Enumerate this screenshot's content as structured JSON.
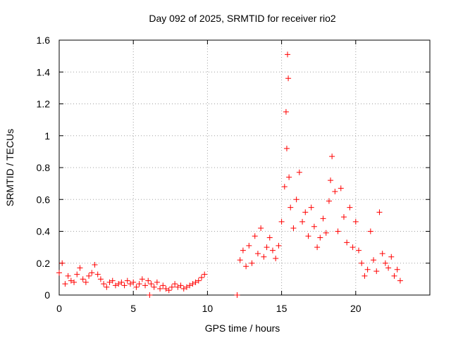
{
  "chart_data": {
    "type": "scatter",
    "title": "Day 092 of 2025, SRMTID for receiver rio2",
    "xlabel": "GPS time / hours",
    "ylabel": "SRMTID / TECUs",
    "xlim": [
      0,
      25
    ],
    "ylim": [
      0,
      1.6
    ],
    "xticks": [
      0,
      5,
      10,
      15,
      20
    ],
    "yticks": [
      0,
      0.2,
      0.4,
      0.6,
      0.8,
      1.0,
      1.2,
      1.4,
      1.6
    ],
    "ytick_labels": [
      "0",
      "0.2",
      "0.4",
      "0.6",
      "0.8",
      "1",
      "1.2",
      "1.4",
      "1.6"
    ],
    "grid": true,
    "marker": "+",
    "color": "#ff0000",
    "series": [
      {
        "name": "SRMTID",
        "x": [
          0.0,
          0.2,
          0.4,
          0.6,
          0.8,
          1.0,
          1.2,
          1.4,
          1.6,
          1.8,
          2.0,
          2.2,
          2.4,
          2.6,
          2.8,
          3.0,
          3.2,
          3.4,
          3.6,
          3.8,
          4.0,
          4.2,
          4.4,
          4.6,
          4.8,
          5.0,
          5.2,
          5.4,
          5.6,
          5.8,
          6.0,
          6.1,
          6.2,
          6.4,
          6.6,
          6.8,
          7.0,
          7.2,
          7.4,
          7.6,
          7.8,
          8.0,
          8.2,
          8.4,
          8.6,
          8.8,
          9.0,
          9.2,
          9.4,
          9.6,
          9.8,
          12.0,
          12.2,
          12.4,
          12.6,
          12.8,
          13.0,
          13.2,
          13.4,
          13.6,
          13.8,
          14.0,
          14.2,
          14.4,
          14.6,
          14.8,
          15.0,
          15.2,
          15.3,
          15.35,
          15.4,
          15.45,
          15.5,
          15.6,
          15.8,
          16.0,
          16.2,
          16.4,
          16.6,
          16.8,
          17.0,
          17.2,
          17.4,
          17.6,
          17.8,
          18.0,
          18.2,
          18.3,
          18.4,
          18.6,
          18.8,
          19.0,
          19.2,
          19.4,
          19.6,
          19.8,
          20.0,
          20.2,
          20.4,
          20.6,
          20.8,
          21.0,
          21.2,
          21.4,
          21.6,
          21.8,
          22.0,
          22.2,
          22.4,
          22.6,
          22.8,
          23.0
        ],
        "y": [
          0.14,
          0.2,
          0.07,
          0.12,
          0.09,
          0.08,
          0.13,
          0.17,
          0.1,
          0.08,
          0.12,
          0.14,
          0.19,
          0.13,
          0.1,
          0.07,
          0.05,
          0.08,
          0.09,
          0.06,
          0.07,
          0.08,
          0.06,
          0.09,
          0.07,
          0.08,
          0.05,
          0.07,
          0.1,
          0.06,
          0.09,
          0.0,
          0.07,
          0.05,
          0.08,
          0.04,
          0.06,
          0.04,
          0.03,
          0.05,
          0.07,
          0.05,
          0.06,
          0.04,
          0.05,
          0.06,
          0.07,
          0.08,
          0.09,
          0.11,
          0.13,
          0.0,
          0.22,
          0.28,
          0.18,
          0.31,
          0.2,
          0.37,
          0.26,
          0.42,
          0.24,
          0.3,
          0.36,
          0.28,
          0.23,
          0.31,
          0.46,
          0.68,
          1.15,
          0.92,
          1.51,
          1.36,
          0.74,
          0.55,
          0.42,
          0.6,
          0.77,
          0.46,
          0.52,
          0.37,
          0.55,
          0.43,
          0.3,
          0.36,
          0.48,
          0.39,
          0.59,
          0.72,
          0.87,
          0.65,
          0.4,
          0.67,
          0.49,
          0.33,
          0.55,
          0.3,
          0.46,
          0.28,
          0.2,
          0.12,
          0.16,
          0.4,
          0.22,
          0.15,
          0.52,
          0.26,
          0.2,
          0.17,
          0.24,
          0.12,
          0.16,
          0.09
        ]
      }
    ]
  }
}
